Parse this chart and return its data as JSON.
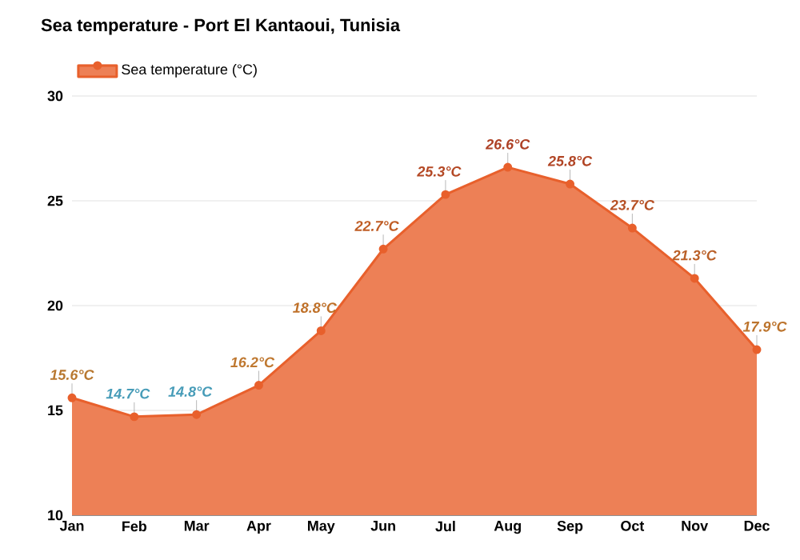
{
  "chart_data": {
    "type": "area",
    "title": "Sea temperature - Port El Kantaoui, Tunisia",
    "categories": [
      "Jan",
      "Feb",
      "Mar",
      "Apr",
      "May",
      "Jun",
      "Jul",
      "Aug",
      "Sep",
      "Oct",
      "Nov",
      "Dec"
    ],
    "series": [
      {
        "name": "Sea temperature (°C)",
        "color": "#e8602c",
        "values": [
          15.6,
          14.7,
          14.8,
          16.2,
          18.8,
          22.7,
          25.3,
          26.6,
          25.8,
          23.7,
          21.3,
          17.9
        ],
        "colors": [
          "#f5a040",
          "#5fd0f5",
          "#5fd0f5",
          "#ffa040",
          "#ff9535",
          "#ff7a30",
          "#f06030",
          "#e85530",
          "#ec5a30",
          "#f26a30",
          "#f88035",
          "#fb9a3c"
        ],
        "value_labels": [
          "15.6°C",
          "14.7°C",
          "14.8°C",
          "16.2°C",
          "18.8°C",
          "22.7°C",
          "25.3°C",
          "26.6°C",
          "25.8°C",
          "23.7°C",
          "21.3°C",
          "17.9°C"
        ]
      }
    ],
    "ylim": [
      10,
      30
    ],
    "yticks": [
      10,
      15,
      20,
      25,
      30
    ],
    "grid": "y",
    "legend": "top left",
    "marker": "circle"
  }
}
